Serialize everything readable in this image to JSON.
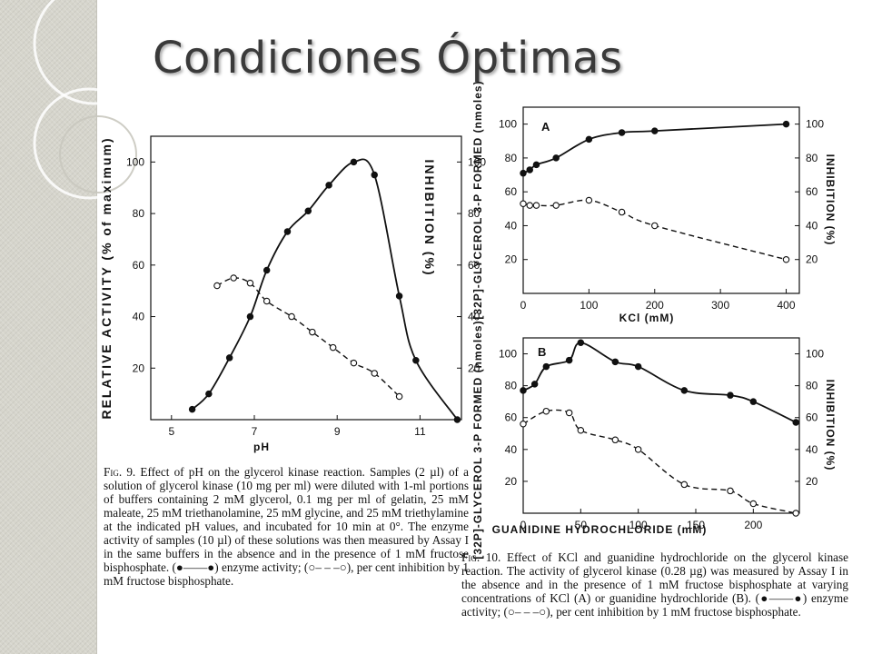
{
  "slide": {
    "title": "Condiciones Óptimas"
  },
  "theme": {
    "sidebar_color": "#d6d5cc",
    "ring_color": "#ffffff",
    "title_color": "#3a3a3a",
    "ink_color": "#111111"
  },
  "captions": {
    "fig9": {
      "number": "Fig. 9.",
      "text": "Effect of pH on the glycerol kinase reaction. Samples (2 µl) of a solution of glycerol kinase (10 mg per ml) were diluted with 1-ml portions of buffers containing 2 mM glycerol, 0.1 mg per ml of gelatin, 25 mM maleate, 25 mM triethanolamine, 25 mM glycine, and 25 mM triethylamine at the indicated pH values, and incubated for 10 min at 0°. The enzyme activity of samples (10 µl) of these solutions was then measured by Assay I in the same buffers in the absence and in the presence of 1 mM fructose bisphosphate. (●——●) enzyme activity; (○– – –○), per cent inhibition by 1 mM fructose bisphosphate."
    },
    "fig10": {
      "number": "Fig. 10.",
      "text": "Effect of KCl and guanidine hydrochloride on the glycerol kinase reaction. The activity of glycerol kinase (0.28 µg) was measured by Assay I in the absence and in the presence of 1 mM fructose bisphosphate at varying concentrations of KCl (A) or guanidine hydrochloride (B). (●——●) enzyme activity; (○– – –○), per cent inhibition by 1 mM fructose bisphosphate."
    }
  },
  "chart_data": [
    {
      "id": "fig9",
      "type": "line",
      "title": "",
      "xlabel": "pH",
      "ylabel_left": "RELATIVE ACTIVITY (% of maximum)",
      "ylabel_right": "INHIBITION (%)",
      "xlim": [
        4.5,
        12
      ],
      "ylim_left": [
        0,
        110
      ],
      "ylim_right": [
        0,
        110
      ],
      "x_ticks": [
        5,
        7,
        9,
        11
      ],
      "y_ticks_left": [
        20,
        40,
        60,
        80,
        100
      ],
      "y_ticks_right": [
        20,
        40,
        60,
        80,
        100
      ],
      "grid": false,
      "series": [
        {
          "role": "activity",
          "marker": "filled-circle",
          "line": "solid",
          "axis": "left",
          "points": [
            [
              5.5,
              4
            ],
            [
              5.9,
              10
            ],
            [
              6.4,
              24
            ],
            [
              6.9,
              40
            ],
            [
              7.3,
              58
            ],
            [
              7.8,
              73
            ],
            [
              8.3,
              81
            ],
            [
              8.8,
              91
            ],
            [
              9.4,
              100
            ],
            [
              9.9,
              95
            ],
            [
              10.5,
              48
            ],
            [
              10.9,
              23
            ],
            [
              11.9,
              0
            ]
          ]
        },
        {
          "role": "inhibition",
          "marker": "open-circle",
          "line": "dashed",
          "axis": "right",
          "points": [
            [
              6.1,
              52
            ],
            [
              6.5,
              55
            ],
            [
              6.9,
              53
            ],
            [
              7.3,
              46
            ],
            [
              7.9,
              40
            ],
            [
              8.4,
              34
            ],
            [
              8.9,
              28
            ],
            [
              9.4,
              22
            ],
            [
              9.9,
              18
            ],
            [
              10.5,
              9
            ]
          ]
        }
      ]
    },
    {
      "id": "fig10a",
      "type": "line",
      "panel": "A",
      "title": "",
      "xlabel": "KCl (mM)",
      "ylabel_left": "[32P]-GLYCEROL 3-P FORMED (nmoles)",
      "ylabel_right": "INHIBITION (%)",
      "xlim": [
        0,
        420
      ],
      "ylim_left": [
        0,
        110
      ],
      "ylim_right": [
        0,
        110
      ],
      "x_ticks": [
        0,
        100,
        200,
        300,
        400
      ],
      "y_ticks_left": [
        20,
        40,
        60,
        80,
        100
      ],
      "y_ticks_right": [
        20,
        40,
        60,
        80,
        100
      ],
      "grid": false,
      "series": [
        {
          "role": "activity",
          "marker": "filled-circle",
          "line": "solid",
          "axis": "left",
          "points": [
            [
              0,
              71
            ],
            [
              10,
              73
            ],
            [
              20,
              76
            ],
            [
              50,
              80
            ],
            [
              100,
              91
            ],
            [
              150,
              95
            ],
            [
              200,
              96
            ],
            [
              400,
              100
            ]
          ]
        },
        {
          "role": "inhibition",
          "marker": "open-circle",
          "line": "dashed",
          "axis": "right",
          "points": [
            [
              0,
              53
            ],
            [
              10,
              52
            ],
            [
              20,
              52
            ],
            [
              50,
              52
            ],
            [
              100,
              55
            ],
            [
              150,
              48
            ],
            [
              200,
              40
            ],
            [
              400,
              20
            ]
          ]
        }
      ]
    },
    {
      "id": "fig10b",
      "type": "line",
      "panel": "B",
      "title": "",
      "xlabel": "GUANIDINE HYDROCHLORIDE (mM)",
      "ylabel_left": "[32P]-GLYCEROL 3-P FORMED (nmoles)",
      "ylabel_right": "INHIBITION (%)",
      "xlim": [
        0,
        240
      ],
      "ylim_left": [
        0,
        110
      ],
      "ylim_right": [
        0,
        110
      ],
      "x_ticks": [
        0,
        50,
        100,
        150,
        200
      ],
      "y_ticks_left": [
        20,
        40,
        60,
        80,
        100
      ],
      "y_ticks_right": [
        20,
        40,
        60,
        80,
        100
      ],
      "grid": false,
      "series": [
        {
          "role": "activity",
          "marker": "filled-circle",
          "line": "solid",
          "axis": "left",
          "points": [
            [
              0,
              77
            ],
            [
              10,
              81
            ],
            [
              20,
              92
            ],
            [
              40,
              96
            ],
            [
              50,
              107
            ],
            [
              80,
              95
            ],
            [
              100,
              92
            ],
            [
              140,
              77
            ],
            [
              180,
              74
            ],
            [
              200,
              70
            ],
            [
              237,
              57
            ]
          ]
        },
        {
          "role": "inhibition",
          "marker": "open-circle",
          "line": "dashed",
          "axis": "right",
          "points": [
            [
              0,
              56
            ],
            [
              20,
              64
            ],
            [
              40,
              63
            ],
            [
              50,
              52
            ],
            [
              80,
              46
            ],
            [
              100,
              40
            ],
            [
              140,
              18
            ],
            [
              180,
              14
            ],
            [
              200,
              6
            ],
            [
              237,
              0
            ]
          ]
        }
      ]
    }
  ]
}
